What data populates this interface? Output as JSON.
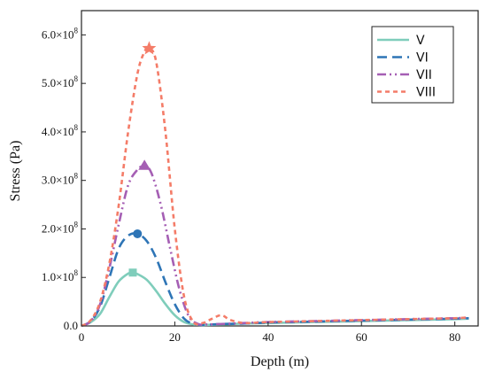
{
  "chart_data": {
    "type": "line",
    "title": "",
    "xlabel": "Depth (m)",
    "ylabel": "Stress (Pa)",
    "xlim": [
      0,
      85
    ],
    "ylim": [
      0,
      650000000
    ],
    "x_ticks": [
      {
        "value": 0,
        "label": "0"
      },
      {
        "value": 20,
        "label": "20"
      },
      {
        "value": 40,
        "label": "40"
      },
      {
        "value": 60,
        "label": "60"
      },
      {
        "value": 80,
        "label": "80"
      }
    ],
    "y_ticks": [
      {
        "value": 0,
        "label": "0.0"
      },
      {
        "value": 100000000,
        "label": "1.0×10",
        "exp": "8"
      },
      {
        "value": 200000000,
        "label": "2.0×10",
        "exp": "8"
      },
      {
        "value": 300000000,
        "label": "3.0×10",
        "exp": "8"
      },
      {
        "value": 400000000,
        "label": "4.0×10",
        "exp": "8"
      },
      {
        "value": 500000000,
        "label": "5.0×10",
        "exp": "8"
      },
      {
        "value": 600000000,
        "label": "6.0×10",
        "exp": "8"
      }
    ],
    "grid": false,
    "legend_position": "top-right",
    "series": [
      {
        "name": "V",
        "color": "#7fcdbb",
        "dash": "solid",
        "marker": "square",
        "peak": {
          "x": 11,
          "y": 110000000
        },
        "x": [
          0,
          2,
          4,
          6,
          8,
          10,
          11,
          12,
          14,
          16,
          18,
          20,
          22,
          24,
          26,
          30,
          35,
          40,
          50,
          60,
          70,
          80,
          83
        ],
        "y": [
          0,
          8000000,
          25000000,
          60000000,
          92000000,
          108000000,
          110000000,
          107000000,
          95000000,
          72000000,
          45000000,
          22000000,
          8000000,
          3000000,
          2000000,
          3000000,
          5000000,
          6000000,
          8000000,
          10000000,
          12000000,
          14000000,
          15000000
        ]
      },
      {
        "name": "VI",
        "color": "#2e75b6",
        "dash": "long",
        "marker": "circle",
        "peak": {
          "x": 12,
          "y": 190000000
        },
        "x": [
          0,
          2,
          4,
          6,
          8,
          10,
          12,
          14,
          16,
          18,
          20,
          22,
          24,
          26,
          28,
          30,
          35,
          40,
          50,
          60,
          70,
          80,
          83
        ],
        "y": [
          0,
          10000000,
          40000000,
          100000000,
          160000000,
          186000000,
          190000000,
          175000000,
          140000000,
          90000000,
          45000000,
          15000000,
          4000000,
          2000000,
          3000000,
          4000000,
          5000000,
          7000000,
          9000000,
          11000000,
          13000000,
          15000000,
          16000000
        ]
      },
      {
        "name": "VII",
        "color": "#a55fb4",
        "dash": "dashdotdot",
        "marker": "triangle",
        "peak": {
          "x": 13.5,
          "y": 330000000
        },
        "x": [
          0,
          2,
          4,
          6,
          8,
          10,
          12,
          13.5,
          15,
          17,
          19,
          21,
          23,
          25,
          27,
          30,
          35,
          40,
          50,
          60,
          70,
          80,
          83
        ],
        "y": [
          0,
          10000000,
          45000000,
          120000000,
          210000000,
          290000000,
          322000000,
          330000000,
          315000000,
          250000000,
          160000000,
          75000000,
          20000000,
          4000000,
          3000000,
          4000000,
          6000000,
          8000000,
          10000000,
          12000000,
          14000000,
          16000000,
          17000000
        ]
      },
      {
        "name": "VIII",
        "color": "#f47c68",
        "dash": "short",
        "marker": "star",
        "peak": {
          "x": 14.5,
          "y": 572000000
        },
        "x": [
          0,
          2,
          4,
          6,
          8,
          10,
          12,
          13.5,
          14.5,
          16,
          18,
          20,
          22,
          24,
          26,
          28,
          30,
          32,
          35,
          40,
          50,
          60,
          70,
          80,
          83
        ],
        "y": [
          0,
          12000000,
          50000000,
          130000000,
          250000000,
          400000000,
          520000000,
          565000000,
          572000000,
          545000000,
          400000000,
          200000000,
          60000000,
          8000000,
          6000000,
          15000000,
          22000000,
          12000000,
          6000000,
          8000000,
          10000000,
          12000000,
          14000000,
          16000000,
          18000000
        ]
      }
    ]
  }
}
